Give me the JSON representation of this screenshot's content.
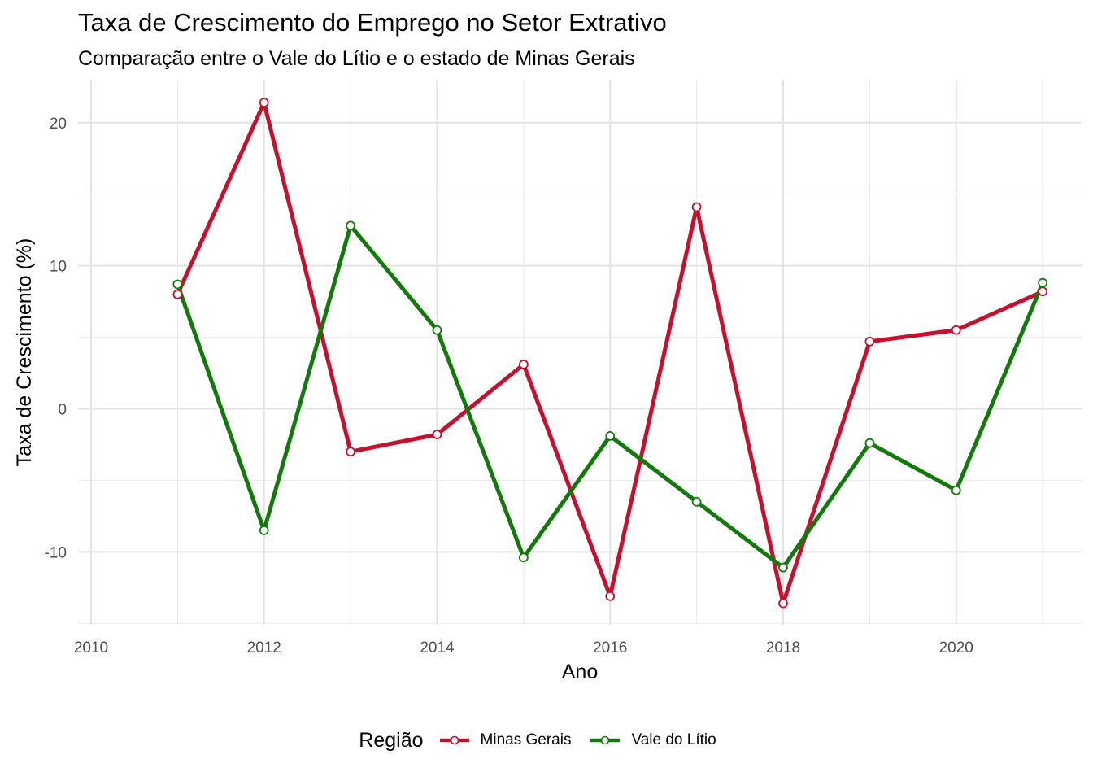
{
  "chart_data": {
    "type": "line",
    "title": "Taxa de Crescimento do Emprego no Setor Extrativo",
    "subtitle": "Comparação entre o Vale do Lítio e o estado de Minas Gerais",
    "xlabel": "Ano",
    "ylabel": "Taxa de Crescimento (%)",
    "xlim": [
      2009.85,
      2021.45
    ],
    "ylim": [
      -15.1,
      23.0
    ],
    "x_ticks": [
      2010,
      2012,
      2014,
      2016,
      2018,
      2020
    ],
    "x_tick_labels": [
      "2010",
      "2012",
      "2014",
      "2016",
      "2018",
      "2020"
    ],
    "y_ticks": [
      -10,
      0,
      10,
      20
    ],
    "y_tick_labels": [
      "-10",
      "0",
      "10",
      "20"
    ],
    "grid": true,
    "legend_position": "bottom",
    "legend_title": "Região",
    "x": [
      2011,
      2012,
      2013,
      2014,
      2015,
      2016,
      2017,
      2018,
      2019,
      2020,
      2021
    ],
    "series": [
      {
        "name": "Minas Gerais",
        "color": "#c8102e",
        "values": [
          8.0,
          21.4,
          -3.0,
          -1.8,
          3.1,
          -13.1,
          14.1,
          -13.6,
          4.7,
          5.5,
          8.2
        ]
      },
      {
        "name": "Vale do Lítio",
        "color": "#127a0b",
        "values": [
          8.7,
          -8.5,
          12.8,
          5.5,
          -10.4,
          -1.9,
          -6.5,
          -11.1,
          -2.4,
          -5.7,
          8.8
        ]
      }
    ]
  }
}
